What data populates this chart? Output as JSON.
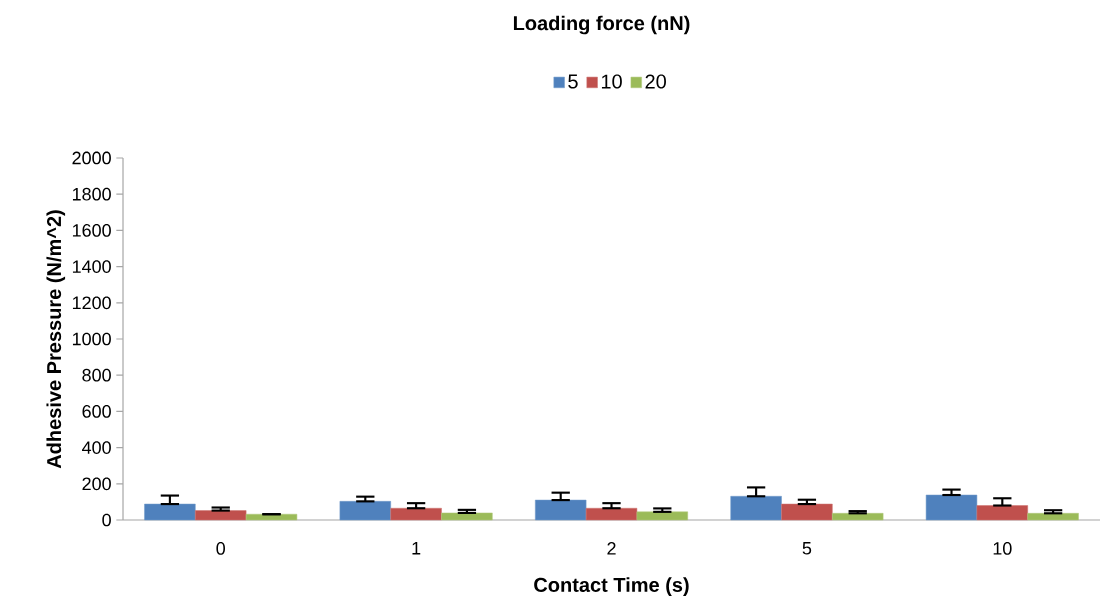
{
  "chart_data": {
    "type": "bar",
    "legend_title": "Loading force (nN)",
    "xlabel": "Contact Time (s)",
    "ylabel": "Adhesive Pressure (N/m^2)",
    "categories": [
      "0",
      "1",
      "2",
      "5",
      "10"
    ],
    "series": [
      {
        "name": "5",
        "color": "#4f81bd",
        "values": [
          88,
          103,
          110,
          131,
          138
        ],
        "errors": [
          [
            88,
            135
          ],
          [
            103,
            129
          ],
          [
            110,
            151
          ],
          [
            131,
            180
          ],
          [
            138,
            168
          ]
        ]
      },
      {
        "name": "10",
        "color": "#c0504d",
        "values": [
          52,
          65,
          65,
          88,
          80
        ],
        "errors": [
          [
            52,
            69
          ],
          [
            65,
            93
          ],
          [
            65,
            93
          ],
          [
            88,
            112
          ],
          [
            80,
            120
          ]
        ]
      },
      {
        "name": "20",
        "color": "#9bbb59",
        "values": [
          32,
          39,
          45,
          37,
          37
        ],
        "errors": [
          null,
          [
            39,
            56
          ],
          [
            45,
            64
          ],
          [
            37,
            49
          ],
          [
            37,
            54
          ]
        ]
      }
    ],
    "ylim": [
      0,
      2000
    ],
    "yticks": [
      0,
      200,
      400,
      600,
      800,
      1000,
      1200,
      1400,
      1600,
      1800,
      2000
    ],
    "grid": false,
    "legend": "top"
  }
}
